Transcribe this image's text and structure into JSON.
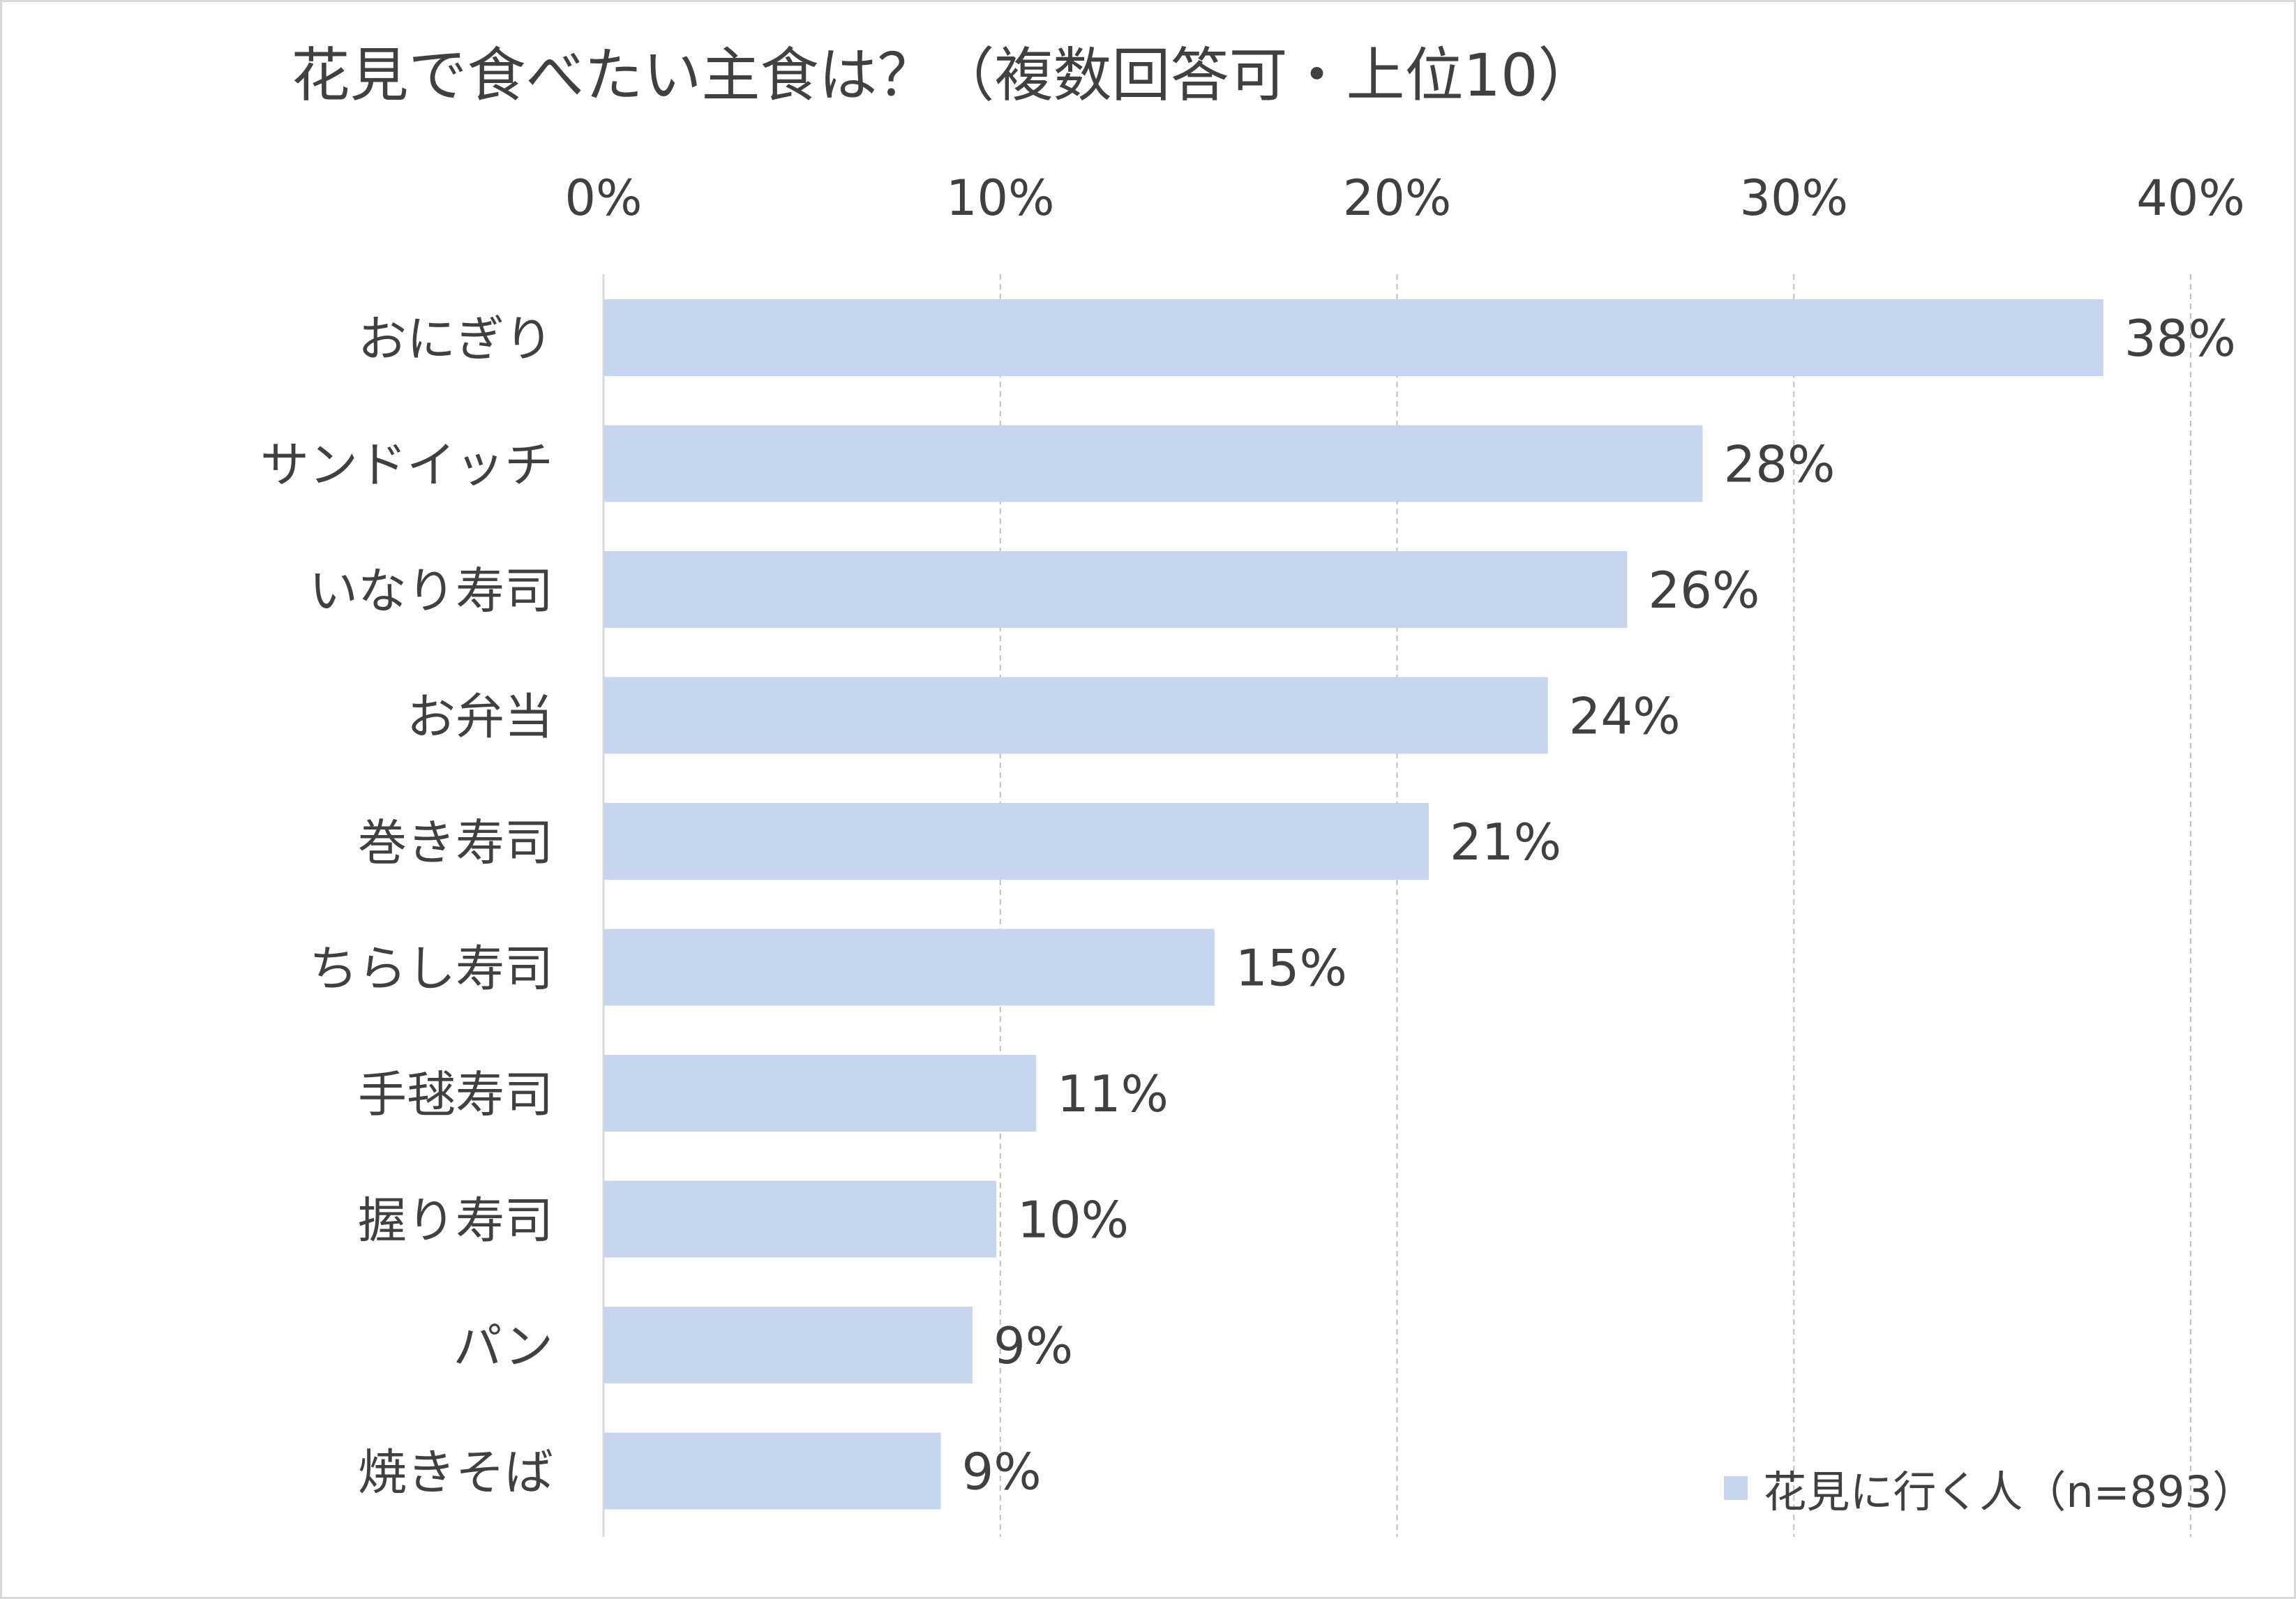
{
  "chart_data": {
    "type": "bar",
    "orientation": "horizontal",
    "title": "花見で食べたい主食は？（複数回答可・上位10）",
    "categories": [
      "おにぎり",
      "サンドイッチ",
      "いなり寿司",
      "お弁当",
      "巻き寿司",
      "ちらし寿司",
      "手毬寿司",
      "握り寿司",
      "パン",
      "焼きそば"
    ],
    "series": [
      {
        "name": "花見に行く人（n=893）",
        "values": [
          38,
          28,
          26,
          24,
          21,
          15,
          11,
          10,
          9,
          9
        ],
        "labels": [
          "38%",
          "28%",
          "26%",
          "24%",
          "21%",
          "15%",
          "11%",
          "10%",
          "9%",
          "9%"
        ],
        "precise_values": [
          37.8,
          27.7,
          25.8,
          23.8,
          20.8,
          15.4,
          10.9,
          9.9,
          9.3,
          8.5
        ]
      }
    ],
    "xlim": [
      0,
      40
    ],
    "xticks": [
      0,
      10,
      20,
      30,
      40
    ],
    "xtick_labels": [
      "0%",
      "10%",
      "20%",
      "30%",
      "40%"
    ],
    "xaxis_position": "top",
    "grid": true,
    "legend_position": "bottom-right",
    "colors": {
      "bar": "#c8d5ee",
      "text": "#404040",
      "grid": "#bfbfbf",
      "axis": "#d9d9d9"
    }
  }
}
